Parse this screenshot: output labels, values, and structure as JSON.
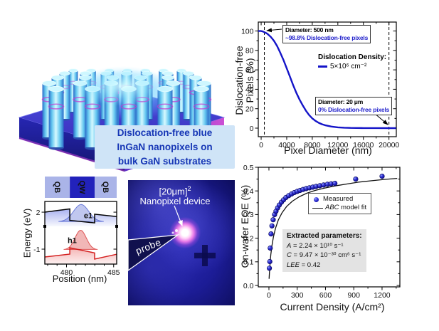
{
  "illustration": {
    "caption_lines": [
      "Dislocation-free blue",
      "InGaN nanopixels on",
      "bulk GaN substrates"
    ],
    "caption_bg": "#cfe4f7",
    "caption_text_color": "#1535b5",
    "pillar_color": "#7fdcf8",
    "substrate_color": "#2a2ac0"
  },
  "microscope": {
    "label_bracket": "[20μm]",
    "label_sup": "2",
    "label_line2": "Nanopixel device",
    "probe_label": "probe",
    "background_color": "#1c1c96",
    "glow_color": "#e87ae8"
  },
  "chart_data": [
    {
      "id": "dislocation_free_vs_diameter",
      "type": "line",
      "xlabel": "Pixel Diameter (nm)",
      "ylabel_lines": [
        "Dislocation-free",
        "Pixels (%)"
      ],
      "xlim": [
        -450,
        21150
      ],
      "ylim": [
        -8.8,
        109.2
      ],
      "xticks": [
        0,
        4000,
        8000,
        12000,
        16000,
        20000
      ],
      "xminor": [
        2000,
        6000,
        10000,
        14000,
        18000
      ],
      "yticks": [
        0,
        20,
        40,
        60,
        80,
        100
      ],
      "yminor": [
        10,
        30,
        50,
        70,
        90
      ],
      "dashed_x": [
        500,
        20000
      ],
      "legend_title": "Dislocation Density:",
      "series": [
        {
          "name": "5×10⁶ cm⁻²",
          "color": "#1414c8",
          "x": [
            -450,
            0,
            250,
            500,
            750,
            1000,
            1500,
            2000,
            2500,
            3000,
            3500,
            4000,
            4500,
            5000,
            5500,
            6000,
            6500,
            7000,
            7500,
            8000,
            8500,
            9000,
            9500,
            10000,
            11000,
            12000,
            13000,
            14000,
            16000,
            18000,
            20000,
            21100
          ],
          "y": [
            100,
            100,
            99.5,
            98.8,
            98,
            97,
            94,
            90,
            84.5,
            77.5,
            70,
            61.5,
            53,
            44.5,
            36.5,
            29.5,
            23.5,
            18,
            13.5,
            10,
            7.5,
            5.5,
            4,
            3,
            1.6,
            0.8,
            0.45,
            0.25,
            0.1,
            0.05,
            0,
            0
          ]
        }
      ],
      "annotations": [
        {
          "title": "Diameter: 500 nm",
          "text": "~98.8% Dislocation-free pixels"
        },
        {
          "title": "Diameter: 20 μm",
          "text": "0% Dislocation-free pixels"
        }
      ]
    },
    {
      "id": "eqe_vs_current_density",
      "type": "scatter",
      "xlabel": "Current Density (A/cm²)",
      "ylabel": "On-wafer EQE (%)",
      "xlim": [
        -113,
        1389
      ],
      "ylim": [
        -0.006,
        0.5
      ],
      "xticks": [
        0,
        300,
        600,
        900,
        1200
      ],
      "xminor": [
        150,
        450,
        750,
        1050,
        1350
      ],
      "yticks": [
        0,
        0.1,
        0.2,
        0.3,
        0.4,
        0.5
      ],
      "yminor": [
        0.05,
        0.15,
        0.25,
        0.35,
        0.45
      ],
      "series": [
        {
          "name": "Measured",
          "kind": "scatter",
          "color": "#2020cc",
          "x": [
            5,
            9,
            14,
            22,
            32,
            45,
            60,
            75,
            92,
            110,
            132,
            155,
            180,
            210,
            240,
            270,
            300,
            330,
            362,
            395,
            430,
            465,
            500,
            540,
            580,
            620,
            660,
            700,
            920,
            1200
          ],
          "y": [
            0.073,
            0.101,
            0.158,
            0.218,
            0.252,
            0.278,
            0.3,
            0.314,
            0.328,
            0.34,
            0.352,
            0.362,
            0.372,
            0.38,
            0.387,
            0.393,
            0.398,
            0.402,
            0.406,
            0.41,
            0.413,
            0.416,
            0.419,
            0.422,
            0.425,
            0.428,
            0.43,
            0.432,
            0.45,
            0.462
          ]
        },
        {
          "name": "ABC model fit",
          "kind": "line",
          "color": "#111111",
          "x": [
            2,
            6,
            12,
            20,
            32,
            48,
            70,
            100,
            140,
            190,
            250,
            320,
            400,
            490,
            590,
            700,
            820,
            950,
            1090,
            1240,
            1360
          ],
          "y": [
            0.028,
            0.058,
            0.095,
            0.13,
            0.168,
            0.205,
            0.242,
            0.277,
            0.308,
            0.335,
            0.357,
            0.375,
            0.39,
            0.402,
            0.412,
            0.421,
            0.429,
            0.437,
            0.443,
            0.449,
            0.453
          ]
        }
      ],
      "legend": [
        {
          "italic": "",
          "label": "Measured"
        },
        {
          "italic": "ABC",
          "label": " model fit"
        }
      ],
      "params_title": "Extracted parameters:",
      "params": [
        {
          "v": "A",
          "rest": " = 2.24 × 10¹⁰ s⁻¹"
        },
        {
          "v": "C",
          "rest": " = 9.47 × 10⁻³⁰ cm⁶ s⁻¹"
        },
        {
          "v": "LEE",
          "rest": " = 0.42"
        }
      ]
    },
    {
      "id": "band_diagram",
      "type": "line",
      "xlabel": "Position (nm)",
      "ylabel": "Energy (eV)",
      "bar_labels": [
        "QB",
        "QW",
        "QB"
      ],
      "bar_colors": [
        "#aab4e8",
        "#2222bb",
        "#aab4e8"
      ],
      "xlim": [
        477.7,
        485.32
      ],
      "xticks": [
        480,
        485
      ],
      "xminor": [
        478,
        479,
        481,
        482,
        483,
        484
      ],
      "well": [
        480.35,
        482.98
      ],
      "top_panel": {
        "ylim": [
          1.43,
          2.43
        ],
        "ytick_value": 2,
        "ytick_label": "2",
        "band_color": "#000000",
        "band": [
          [
            477.7,
            2.0
          ],
          [
            480.35,
            2.13
          ],
          [
            480.35,
            1.67
          ],
          [
            482.98,
            1.57
          ],
          [
            482.98,
            1.92
          ],
          [
            485.32,
            1.82
          ]
        ],
        "wf": {
          "label": "e1",
          "center": 481.55,
          "sigma": 0.8,
          "peak": 2.31,
          "base": 1.62,
          "color": "#3a50cc"
        }
      },
      "bottom_panel": {
        "ylim": [
          -1.555,
          -0.155
        ],
        "ytick_value": -1,
        "ytick_label": "-1",
        "band_color": "#d42020",
        "band": [
          [
            477.7,
            -1.29
          ],
          [
            480.35,
            -1.185
          ],
          [
            480.35,
            -0.95
          ],
          [
            482.98,
            -1.14
          ],
          [
            482.98,
            -1.37
          ],
          [
            485.32,
            -1.19
          ]
        ],
        "wf": {
          "label": "h1",
          "center": 481.5,
          "sigma": 0.6,
          "peak": -0.3,
          "base": -1.02,
          "color": "#d42020"
        }
      }
    }
  ]
}
